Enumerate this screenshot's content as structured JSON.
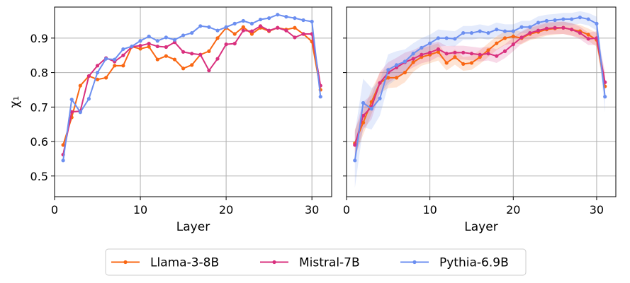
{
  "chart_data": [
    {
      "type": "line",
      "xlabel": "Layer",
      "ylabel": "χ₁",
      "xlim": [
        0,
        32.3
      ],
      "ylim": [
        0.44,
        0.99
      ],
      "xticks": [
        0,
        10,
        20,
        30
      ],
      "yticks": [
        0.5,
        0.6,
        0.7,
        0.8,
        0.9
      ],
      "ytick_labels": [
        "0.5",
        "0.6",
        "0.7",
        "0.8",
        "0.9"
      ],
      "grid": true,
      "x": [
        1,
        2,
        3,
        4,
        5,
        6,
        7,
        8,
        9,
        10,
        11,
        12,
        13,
        14,
        15,
        16,
        17,
        18,
        19,
        20,
        21,
        22,
        23,
        24,
        25,
        26,
        27,
        28,
        29,
        30,
        31
      ],
      "series": [
        {
          "name": "Llama-3-8B",
          "values": [
            0.59,
            0.67,
            0.762,
            0.79,
            0.78,
            0.785,
            0.82,
            0.82,
            0.875,
            0.869,
            0.875,
            0.838,
            0.848,
            0.838,
            0.812,
            0.822,
            0.852,
            0.862,
            0.9,
            0.93,
            0.912,
            0.932,
            0.912,
            0.93,
            0.92,
            0.93,
            0.925,
            0.93,
            0.912,
            0.89,
            0.75
          ]
        },
        {
          "name": "Mistral-7B",
          "values": [
            0.562,
            0.686,
            0.688,
            0.79,
            0.82,
            0.842,
            0.832,
            0.85,
            0.875,
            0.878,
            0.884,
            0.876,
            0.874,
            0.888,
            0.86,
            0.855,
            0.852,
            0.806,
            0.84,
            0.882,
            0.884,
            0.922,
            0.92,
            0.935,
            0.922,
            0.93,
            0.922,
            0.902,
            0.912,
            0.912,
            0.762
          ]
        },
        {
          "name": "Pythia-6.9B",
          "values": [
            0.545,
            0.722,
            0.685,
            0.724,
            0.8,
            0.84,
            0.838,
            0.868,
            0.876,
            0.892,
            0.905,
            0.892,
            0.902,
            0.895,
            0.908,
            0.915,
            0.935,
            0.932,
            0.922,
            0.932,
            0.942,
            0.95,
            0.942,
            0.954,
            0.958,
            0.968,
            0.962,
            0.958,
            0.952,
            0.948,
            0.73
          ]
        }
      ]
    },
    {
      "type": "line",
      "xlabel": "Layer",
      "ylabel": "",
      "xlim": [
        0,
        32.3
      ],
      "ylim": [
        0.44,
        0.99
      ],
      "xticks": [
        0,
        10,
        20,
        30
      ],
      "yticks": [
        0.5,
        0.6,
        0.7,
        0.8,
        0.9
      ],
      "grid": true,
      "x": [
        1,
        2,
        3,
        4,
        5,
        6,
        7,
        8,
        9,
        10,
        11,
        12,
        13,
        14,
        15,
        16,
        17,
        18,
        19,
        20,
        21,
        22,
        23,
        24,
        25,
        26,
        27,
        28,
        29,
        30,
        31
      ],
      "series": [
        {
          "name": "Llama-3-8B",
          "values": [
            0.595,
            0.655,
            0.715,
            0.77,
            0.785,
            0.785,
            0.8,
            0.83,
            0.845,
            0.852,
            0.86,
            0.828,
            0.845,
            0.825,
            0.828,
            0.845,
            0.865,
            0.885,
            0.9,
            0.905,
            0.9,
            0.912,
            0.918,
            0.925,
            0.928,
            0.93,
            0.925,
            0.92,
            0.91,
            0.895,
            0.76
          ],
          "band": [
            0.04,
            0.035,
            0.035,
            0.03,
            0.03,
            0.028,
            0.028,
            0.028,
            0.025,
            0.025,
            0.025,
            0.022,
            0.022,
            0.02,
            0.02,
            0.02,
            0.02,
            0.02,
            0.02,
            0.02,
            0.018,
            0.018,
            0.018,
            0.018,
            0.018,
            0.018,
            0.018,
            0.018,
            0.018,
            0.02,
            0.03
          ]
        },
        {
          "name": "Mistral-7B",
          "values": [
            0.59,
            0.675,
            0.7,
            0.77,
            0.8,
            0.815,
            0.83,
            0.84,
            0.852,
            0.858,
            0.868,
            0.855,
            0.858,
            0.858,
            0.855,
            0.852,
            0.855,
            0.848,
            0.862,
            0.882,
            0.902,
            0.915,
            0.922,
            0.928,
            0.93,
            0.93,
            0.925,
            0.915,
            0.898,
            0.9,
            0.772
          ],
          "band": [
            0.04,
            0.04,
            0.035,
            0.032,
            0.03,
            0.028,
            0.028,
            0.025,
            0.025,
            0.025,
            0.022,
            0.022,
            0.02,
            0.02,
            0.02,
            0.02,
            0.02,
            0.02,
            0.02,
            0.02,
            0.018,
            0.018,
            0.018,
            0.018,
            0.018,
            0.018,
            0.018,
            0.018,
            0.018,
            0.02,
            0.03
          ]
        },
        {
          "name": "Pythia-6.9B",
          "values": [
            0.545,
            0.712,
            0.695,
            0.725,
            0.808,
            0.822,
            0.832,
            0.855,
            0.872,
            0.885,
            0.9,
            0.9,
            0.898,
            0.915,
            0.915,
            0.92,
            0.915,
            0.925,
            0.92,
            0.92,
            0.932,
            0.932,
            0.945,
            0.95,
            0.952,
            0.955,
            0.955,
            0.96,
            0.955,
            0.942,
            0.73
          ],
          "band": [
            0.08,
            0.07,
            0.06,
            0.05,
            0.045,
            0.04,
            0.035,
            0.03,
            0.028,
            0.025,
            0.025,
            0.022,
            0.022,
            0.02,
            0.02,
            0.02,
            0.02,
            0.02,
            0.02,
            0.02,
            0.018,
            0.018,
            0.018,
            0.018,
            0.018,
            0.018,
            0.018,
            0.018,
            0.018,
            0.02,
            0.045
          ]
        }
      ]
    }
  ],
  "colors": {
    "Llama-3-8B": "#f96713",
    "Mistral-7B": "#d9307e",
    "Pythia-6.9B": "#6c8ff0",
    "grid": "#b0b0b0"
  },
  "legend": {
    "placement": "bottom-center",
    "entries": [
      "Llama-3-8B",
      "Mistral-7B",
      "Pythia-6.9B"
    ]
  }
}
